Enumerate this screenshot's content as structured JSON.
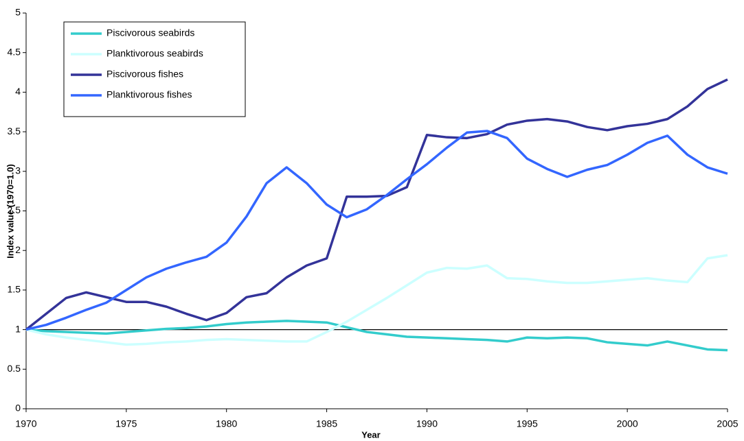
{
  "chart_data": {
    "type": "line",
    "x_label": "Year",
    "y_label": "Index value (1970=1.0)",
    "x": [
      1970,
      1971,
      1972,
      1973,
      1974,
      1975,
      1976,
      1977,
      1978,
      1979,
      1980,
      1981,
      1982,
      1983,
      1984,
      1985,
      1986,
      1987,
      1988,
      1989,
      1990,
      1991,
      1992,
      1993,
      1994,
      1995,
      1996,
      1997,
      1998,
      1999,
      2000,
      2001,
      2002,
      2003,
      2004,
      2005
    ],
    "series": [
      {
        "name": "Piscivorous seabirds",
        "color": "#33cccc",
        "values": [
          1.0,
          0.98,
          0.97,
          0.96,
          0.95,
          0.97,
          0.99,
          1.01,
          1.02,
          1.04,
          1.07,
          1.09,
          1.1,
          1.11,
          1.1,
          1.09,
          1.03,
          0.97,
          0.94,
          0.91,
          0.9,
          0.89,
          0.88,
          0.87,
          0.85,
          0.9,
          0.89,
          0.9,
          0.89,
          0.84,
          0.82,
          0.8,
          0.85,
          0.8,
          0.75,
          0.74
        ]
      },
      {
        "name": "Planktivorous seabirds",
        "color": "#ccffff",
        "values": [
          1.0,
          0.94,
          0.9,
          0.87,
          0.84,
          0.81,
          0.82,
          0.84,
          0.85,
          0.87,
          0.88,
          0.87,
          0.86,
          0.85,
          0.85,
          0.97,
          1.1,
          1.25,
          1.4,
          1.56,
          1.72,
          1.78,
          1.77,
          1.81,
          1.65,
          1.64,
          1.61,
          1.59,
          1.59,
          1.61,
          1.63,
          1.65,
          1.62,
          1.6,
          1.9,
          1.94
        ]
      },
      {
        "name": "Piscivorous fishes",
        "color": "#333399",
        "values": [
          1.0,
          1.2,
          1.4,
          1.47,
          1.41,
          1.35,
          1.35,
          1.29,
          1.2,
          1.12,
          1.21,
          1.41,
          1.46,
          1.66,
          1.81,
          1.9,
          2.68,
          2.68,
          2.69,
          2.8,
          3.46,
          3.43,
          3.42,
          3.47,
          3.59,
          3.64,
          3.66,
          3.63,
          3.56,
          3.52,
          3.57,
          3.6,
          3.66,
          3.82,
          4.04,
          4.16
        ]
      },
      {
        "name": "Planktivorous fishes",
        "color": "#3366ff",
        "values": [
          1.0,
          1.06,
          1.15,
          1.25,
          1.34,
          1.5,
          1.66,
          1.77,
          1.85,
          1.92,
          2.1,
          2.43,
          2.85,
          3.05,
          2.85,
          2.58,
          2.42,
          2.52,
          2.7,
          2.9,
          3.09,
          3.3,
          3.49,
          3.51,
          3.42,
          3.16,
          3.03,
          2.93,
          3.02,
          3.08,
          3.21,
          3.36,
          3.45,
          3.21,
          3.05,
          2.97
        ]
      }
    ],
    "xlim": [
      1970,
      2005
    ],
    "xticks": [
      1970,
      1975,
      1980,
      1985,
      1990,
      1995,
      2000,
      2005
    ],
    "ylim": [
      0,
      5
    ],
    "yticks": [
      0,
      0.5,
      1,
      1.5,
      2,
      2.5,
      3,
      3.5,
      4,
      4.5,
      5
    ],
    "reference_line": 1,
    "grid": false,
    "legend": "top-left"
  }
}
